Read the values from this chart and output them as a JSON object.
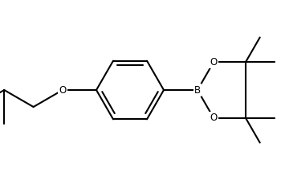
{
  "bg_color": "#ffffff",
  "line_color": "#000000",
  "line_width": 1.5,
  "font_size": 8.5,
  "figsize": [
    3.5,
    2.14
  ],
  "dpi": 100,
  "xlim": [
    0,
    3.5
  ],
  "ylim": [
    0,
    2.14
  ]
}
